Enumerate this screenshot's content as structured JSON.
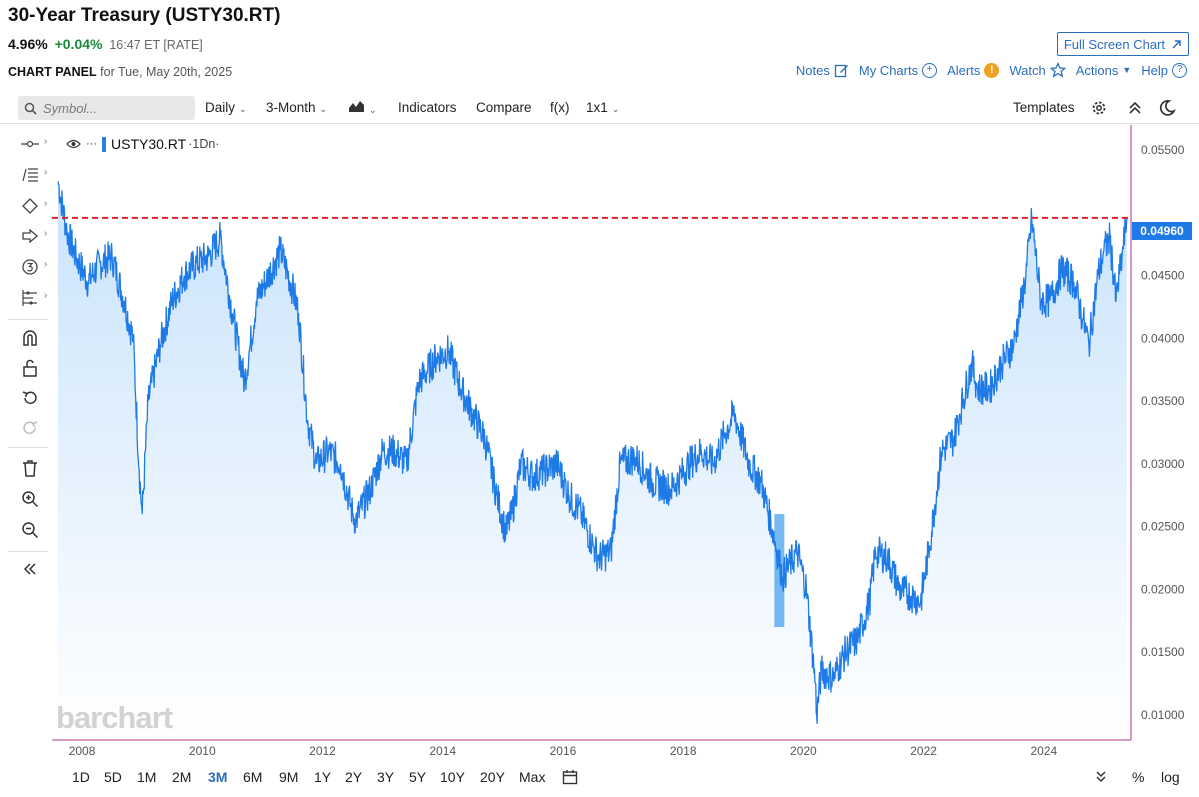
{
  "header": {
    "title": "30-Year Treasury (USTY30.RT)",
    "last": "4.96%",
    "change": "+0.04%",
    "meta": "16:47 ET [RATE]",
    "panel_label": "CHART PANEL",
    "panel_date": "for Tue, May 20th, 2025",
    "fullscreen_label": "Full Screen Chart"
  },
  "links": {
    "notes": "Notes",
    "mycharts": "My Charts",
    "alerts": "Alerts",
    "watch": "Watch",
    "actions": "Actions",
    "help": "Help"
  },
  "toolbar": {
    "search_placeholder": "Symbol...",
    "interval": "Daily",
    "period": "3-Month",
    "indicators": "Indicators",
    "compare": "Compare",
    "fx": "f(x)",
    "layout": "1x1",
    "templates": "Templates"
  },
  "series_label": {
    "symbol": "USTY30.RT",
    "suffix": "·1Dn·"
  },
  "price_tag": "0.04960",
  "watermark": "barchart",
  "bottom": {
    "ranges": [
      "1D",
      "5D",
      "1M",
      "2M",
      "3M",
      "6M",
      "9M",
      "1Y",
      "2Y",
      "3Y",
      "5Y",
      "10Y",
      "20Y",
      "Max"
    ],
    "active": "3M",
    "percent": "%",
    "log": "log"
  },
  "colors": {
    "line": "#1e7ae6",
    "area_top": "#c9e3fb",
    "area_bottom": "#ffffff",
    "ref_line": "#e0202a",
    "border": "#c05fa8",
    "highlight": "#4aa1ee"
  },
  "chart_data": {
    "type": "area",
    "title": "30-Year Treasury (USTY30.RT)",
    "series": [
      {
        "name": "USTY30.RT",
        "x": [
          2007.6,
          2007.75,
          2007.9,
          2008.1,
          2008.3,
          2008.5,
          2008.7,
          2008.85,
          2008.95,
          2009.0,
          2009.1,
          2009.3,
          2009.5,
          2009.7,
          2009.9,
          2010.1,
          2010.3,
          2010.5,
          2010.7,
          2010.8,
          2010.9,
          2011.1,
          2011.3,
          2011.5,
          2011.6,
          2011.75,
          2011.9,
          2012.1,
          2012.3,
          2012.5,
          2012.55,
          2012.8,
          2013.0,
          2013.2,
          2013.4,
          2013.6,
          2013.9,
          2014.1,
          2014.3,
          2014.5,
          2014.7,
          2014.9,
          2015.05,
          2015.15,
          2015.3,
          2015.5,
          2015.7,
          2015.9,
          2016.1,
          2016.3,
          2016.5,
          2016.6,
          2016.8,
          2016.95,
          2017.2,
          2017.5,
          2017.8,
          2018.1,
          2018.3,
          2018.5,
          2018.7,
          2018.85,
          2019.1,
          2019.3,
          2019.5,
          2019.65,
          2019.9,
          2020.05,
          2020.2,
          2020.22,
          2020.3,
          2020.5,
          2020.7,
          2020.9,
          2021.1,
          2021.2,
          2021.4,
          2021.6,
          2021.8,
          2021.95,
          2022.1,
          2022.3,
          2022.5,
          2022.6,
          2022.8,
          2022.9,
          2023.1,
          2023.3,
          2023.5,
          2023.7,
          2023.8,
          2023.95,
          2024.1,
          2024.3,
          2024.5,
          2024.65,
          2024.75,
          2024.9,
          2025.0,
          2025.1,
          2025.2,
          2025.3,
          2025.38
        ],
        "y": [
          0.0525,
          0.0485,
          0.0465,
          0.0445,
          0.046,
          0.0465,
          0.043,
          0.04,
          0.0295,
          0.026,
          0.035,
          0.0395,
          0.043,
          0.045,
          0.046,
          0.0465,
          0.048,
          0.042,
          0.0365,
          0.0395,
          0.043,
          0.045,
          0.047,
          0.044,
          0.042,
          0.0335,
          0.03,
          0.031,
          0.03,
          0.026,
          0.0255,
          0.028,
          0.031,
          0.031,
          0.03,
          0.0365,
          0.0385,
          0.039,
          0.036,
          0.034,
          0.032,
          0.0275,
          0.0245,
          0.026,
          0.03,
          0.029,
          0.0295,
          0.03,
          0.0275,
          0.026,
          0.0235,
          0.0225,
          0.023,
          0.03,
          0.0305,
          0.0285,
          0.028,
          0.03,
          0.031,
          0.03,
          0.0325,
          0.034,
          0.03,
          0.0285,
          0.0245,
          0.021,
          0.023,
          0.02,
          0.0125,
          0.01,
          0.0135,
          0.013,
          0.015,
          0.016,
          0.019,
          0.023,
          0.0225,
          0.02,
          0.0195,
          0.019,
          0.0235,
          0.031,
          0.032,
          0.034,
          0.038,
          0.036,
          0.036,
          0.038,
          0.0395,
          0.045,
          0.0495,
          0.043,
          0.043,
          0.0455,
          0.0445,
          0.0415,
          0.0395,
          0.045,
          0.047,
          0.048,
          0.043,
          0.0465,
          0.0496
        ]
      }
    ],
    "xlim": [
      2007.5,
      2025.45
    ],
    "ylim": [
      0.008,
      0.057
    ],
    "x_ticks": [
      "2008",
      "2010",
      "2012",
      "2014",
      "2016",
      "2018",
      "2020",
      "2022",
      "2024"
    ],
    "x_tick_values": [
      2008,
      2010,
      2012,
      2014,
      2016,
      2018,
      2020,
      2022,
      2024
    ],
    "y_ticks": [
      "0.01000",
      "0.01500",
      "0.02000",
      "0.02500",
      "0.03000",
      "0.03500",
      "0.04000",
      "0.04500",
      "0.05500"
    ],
    "y_tick_values": [
      0.01,
      0.015,
      0.02,
      0.025,
      0.03,
      0.035,
      0.04,
      0.045,
      0.055
    ],
    "last_value": 0.0496,
    "reference_line": 0.0496,
    "highlight_bar": {
      "x": 2019.6,
      "y_top": 0.026,
      "y_bottom": 0.017
    },
    "grid": false,
    "legend": "top-left"
  }
}
